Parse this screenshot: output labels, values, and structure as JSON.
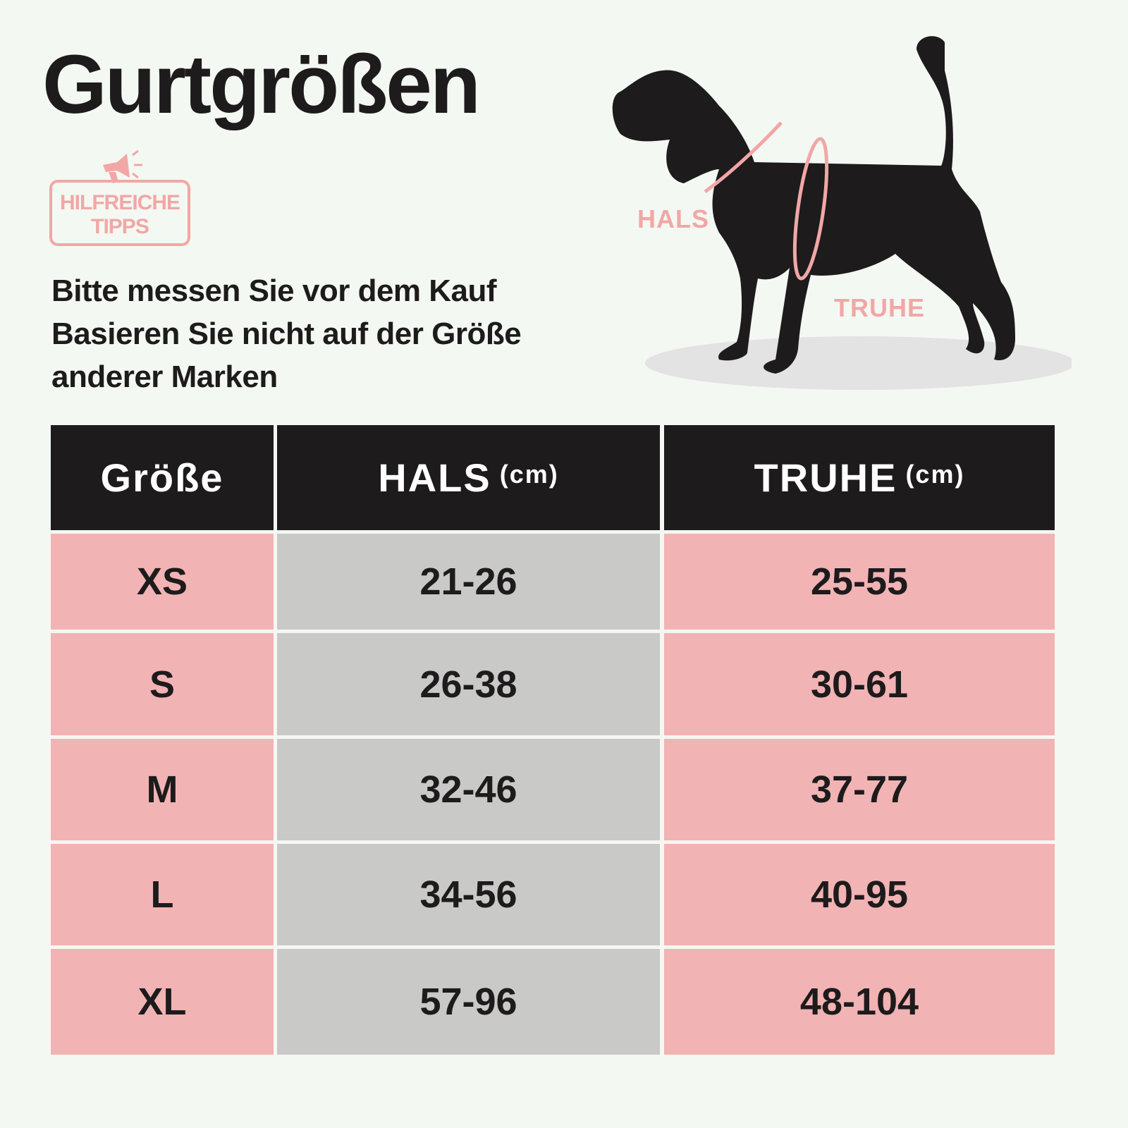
{
  "header": {
    "title": "Gurtgrößen"
  },
  "badge": {
    "lines": [
      "HILFREICHE",
      "TIPPS"
    ]
  },
  "note": {
    "lines": [
      "Bitte messen Sie vor dem Kauf",
      "Basieren Sie nicht auf der Größe",
      "anderer Marken"
    ]
  },
  "illustration": {
    "labels": [
      "HALS",
      "TRUHE"
    ]
  },
  "table": {
    "header": [
      {
        "main": "Größe"
      },
      {
        "main": "HALS",
        "unit": "(cm)"
      },
      {
        "main": "TRUHE",
        "unit": "(cm)"
      }
    ],
    "rows": [
      [
        "XS",
        "21-26",
        "25-55"
      ],
      [
        "S",
        "26-38",
        "30-61"
      ],
      [
        "M",
        "32-46",
        "37-77"
      ],
      [
        "L",
        "34-56",
        "40-95"
      ],
      [
        "XL",
        "57-96",
        "48-104"
      ]
    ]
  }
}
